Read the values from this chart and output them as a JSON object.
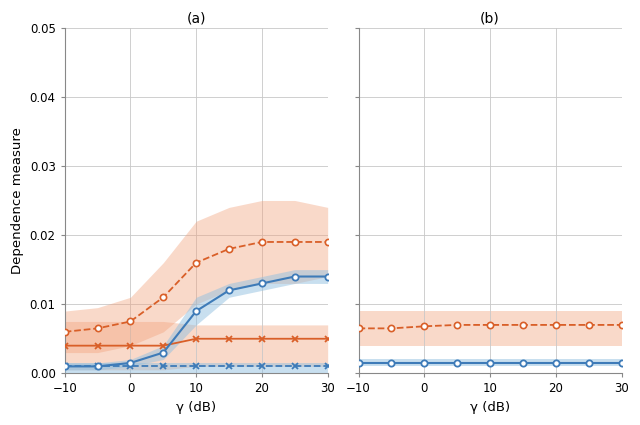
{
  "gamma": [
    -10,
    -5,
    0,
    5,
    10,
    15,
    20,
    25,
    30
  ],
  "subplot_a": {
    "orange_circle_mean": [
      0.006,
      0.0065,
      0.0075,
      0.011,
      0.016,
      0.018,
      0.019,
      0.019,
      0.019
    ],
    "orange_circle_upper": [
      0.009,
      0.0095,
      0.011,
      0.016,
      0.022,
      0.024,
      0.025,
      0.025,
      0.024
    ],
    "orange_circle_lower": [
      0.003,
      0.003,
      0.004,
      0.006,
      0.01,
      0.012,
      0.013,
      0.013,
      0.014
    ],
    "orange_x_mean": [
      0.004,
      0.004,
      0.004,
      0.004,
      0.005,
      0.005,
      0.005,
      0.005,
      0.005
    ],
    "orange_x_upper": [
      0.0075,
      0.0075,
      0.0075,
      0.0075,
      0.007,
      0.007,
      0.007,
      0.007,
      0.007
    ],
    "orange_x_lower": [
      0.0005,
      0.0005,
      0.0005,
      0.0005,
      0.001,
      0.001,
      0.001,
      0.001,
      0.001
    ],
    "blue_circle_mean": [
      0.001,
      0.001,
      0.0015,
      0.003,
      0.009,
      0.012,
      0.013,
      0.014,
      0.014
    ],
    "blue_circle_upper": [
      0.0015,
      0.0015,
      0.002,
      0.004,
      0.011,
      0.013,
      0.014,
      0.015,
      0.015
    ],
    "blue_circle_lower": [
      0.0005,
      0.0005,
      0.001,
      0.002,
      0.007,
      0.011,
      0.012,
      0.013,
      0.013
    ],
    "blue_x_mean": [
      0.001,
      0.001,
      0.001,
      0.001,
      0.001,
      0.001,
      0.001,
      0.001,
      0.001
    ],
    "blue_x_upper": [
      0.0015,
      0.0015,
      0.0015,
      0.0015,
      0.0015,
      0.0015,
      0.0015,
      0.0015,
      0.0015
    ],
    "blue_x_lower": [
      0.0,
      0.0,
      0.0,
      0.0,
      0.0,
      0.0,
      0.0,
      0.0,
      0.0
    ]
  },
  "subplot_b": {
    "orange_circle_mean": [
      0.0065,
      0.0065,
      0.0068,
      0.007,
      0.007,
      0.007,
      0.007,
      0.007,
      0.007
    ],
    "orange_circle_upper": [
      0.009,
      0.009,
      0.009,
      0.009,
      0.009,
      0.009,
      0.009,
      0.009,
      0.009
    ],
    "orange_circle_lower": [
      0.004,
      0.004,
      0.004,
      0.004,
      0.004,
      0.004,
      0.004,
      0.004,
      0.004
    ],
    "blue_circle_mean": [
      0.0015,
      0.0015,
      0.0015,
      0.0015,
      0.0015,
      0.0015,
      0.0015,
      0.0015,
      0.0015
    ],
    "blue_circle_upper": [
      0.002,
      0.002,
      0.002,
      0.002,
      0.002,
      0.002,
      0.002,
      0.002,
      0.002
    ],
    "blue_circle_lower": [
      0.001,
      0.001,
      0.001,
      0.001,
      0.001,
      0.001,
      0.001,
      0.001,
      0.001
    ]
  },
  "orange_color": "#D95F28",
  "blue_color": "#3E7BB8",
  "orange_fill": "#F2A07A",
  "blue_fill": "#92C0E0",
  "orange_fill_alpha": 0.4,
  "blue_fill_alpha": 0.5,
  "ylim": [
    0,
    0.05
  ],
  "yticks": [
    0,
    0.01,
    0.02,
    0.03,
    0.04,
    0.05
  ],
  "xticks": [
    -10,
    0,
    10,
    20,
    30
  ],
  "xlabel": "γ (dB)",
  "ylabel": "Dependence measure",
  "title_a": "(a)",
  "title_b": "(b)",
  "grid_color": "#C8C8C8",
  "spine_color": "#888888"
}
